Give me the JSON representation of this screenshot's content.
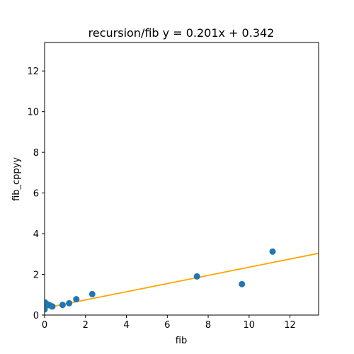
{
  "chart_data": {
    "type": "scatter",
    "title": "recursion/fib y = 0.201x + 0.342",
    "xlabel": "fib",
    "ylabel": "fib_cppyy",
    "xlim": [
      0,
      13.4
    ],
    "ylim": [
      0,
      13.4
    ],
    "xticks": [
      0,
      2,
      4,
      6,
      8,
      10,
      12
    ],
    "yticks": [
      0,
      2,
      4,
      6,
      8,
      10,
      12
    ],
    "points": [
      {
        "x": 0.0,
        "y": 0.28
      },
      {
        "x": 0.02,
        "y": 0.62
      },
      {
        "x": 0.05,
        "y": 0.45
      },
      {
        "x": 0.1,
        "y": 0.55
      },
      {
        "x": 0.18,
        "y": 0.5
      },
      {
        "x": 0.25,
        "y": 0.48
      },
      {
        "x": 0.38,
        "y": 0.42
      },
      {
        "x": 0.88,
        "y": 0.5
      },
      {
        "x": 1.2,
        "y": 0.58
      },
      {
        "x": 1.55,
        "y": 0.78
      },
      {
        "x": 2.33,
        "y": 1.03
      },
      {
        "x": 7.45,
        "y": 1.9
      },
      {
        "x": 9.65,
        "y": 1.52
      },
      {
        "x": 11.15,
        "y": 3.12
      }
    ],
    "fit": {
      "slope": 0.201,
      "intercept": 0.342
    },
    "colors": {
      "points": "#1f77b4",
      "fit": "#ffa500"
    }
  }
}
